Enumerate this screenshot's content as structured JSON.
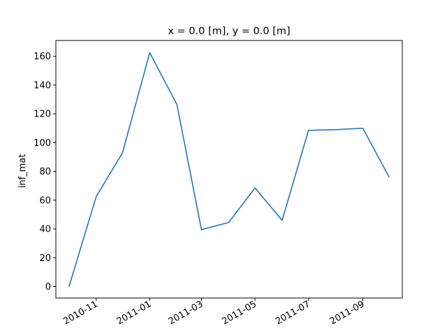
{
  "chart_data": {
    "type": "line",
    "title": "x = 0.0 [m], y = 0.0 [m]",
    "xlabel": "",
    "ylabel": "inf_mat",
    "grid": false,
    "legend": "none",
    "ylim": [
      -8,
      171
    ],
    "xlim": [
      "2010-09-16",
      "2011-10-16"
    ],
    "yticks": [
      0,
      20,
      40,
      60,
      80,
      100,
      120,
      140,
      160
    ],
    "xticks": [
      "2010-11",
      "2011-01",
      "2011-03",
      "2011-05",
      "2011-07",
      "2011-09"
    ],
    "series": [
      {
        "color": "#1f77b4",
        "x": [
          "2010-10-01",
          "2010-11-01",
          "2010-12-01",
          "2011-01-01",
          "2011-02-01",
          "2011-03-01",
          "2011-04-01",
          "2011-05-01",
          "2011-06-01",
          "2011-07-01",
          "2011-08-01",
          "2011-09-01",
          "2011-10-01"
        ],
        "y": [
          0,
          62.5,
          93,
          162.5,
          126.5,
          39.5,
          44.5,
          68.5,
          46,
          108.5,
          109,
          110,
          76
        ]
      }
    ]
  }
}
